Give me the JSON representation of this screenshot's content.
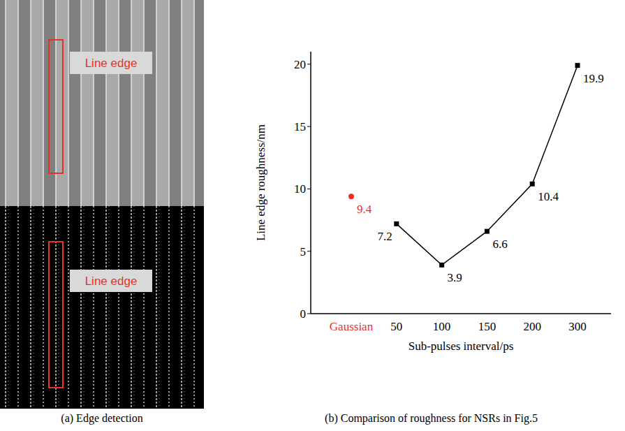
{
  "chart_data": {
    "type": "line",
    "title": "(b) Comparison of roughness for NSRs in Fig.5",
    "x_label": "Sub-pulses interval/ps",
    "y_label": "Line edge roughness/nm",
    "categories": [
      "Gaussian",
      "50",
      "100",
      "150",
      "200",
      "300"
    ],
    "series": [
      {
        "type": "scatter",
        "color": "#e8312a",
        "marker": "circle",
        "values": [
          9.4,
          null,
          null,
          null,
          null,
          null
        ]
      },
      {
        "type": "line",
        "color": "#000000",
        "marker": "square",
        "line_style": "solid",
        "values": [
          null,
          7.2,
          3.9,
          6.6,
          10.4,
          19.9
        ]
      }
    ],
    "ylim": [
      0,
      21
    ],
    "yticks": [
      0,
      5,
      10,
      15,
      20
    ],
    "data_labels": true,
    "grid": false
  },
  "panel_a": {
    "caption": "(a) Edge detection",
    "labels": [
      "Line edge",
      "Line edge"
    ]
  }
}
